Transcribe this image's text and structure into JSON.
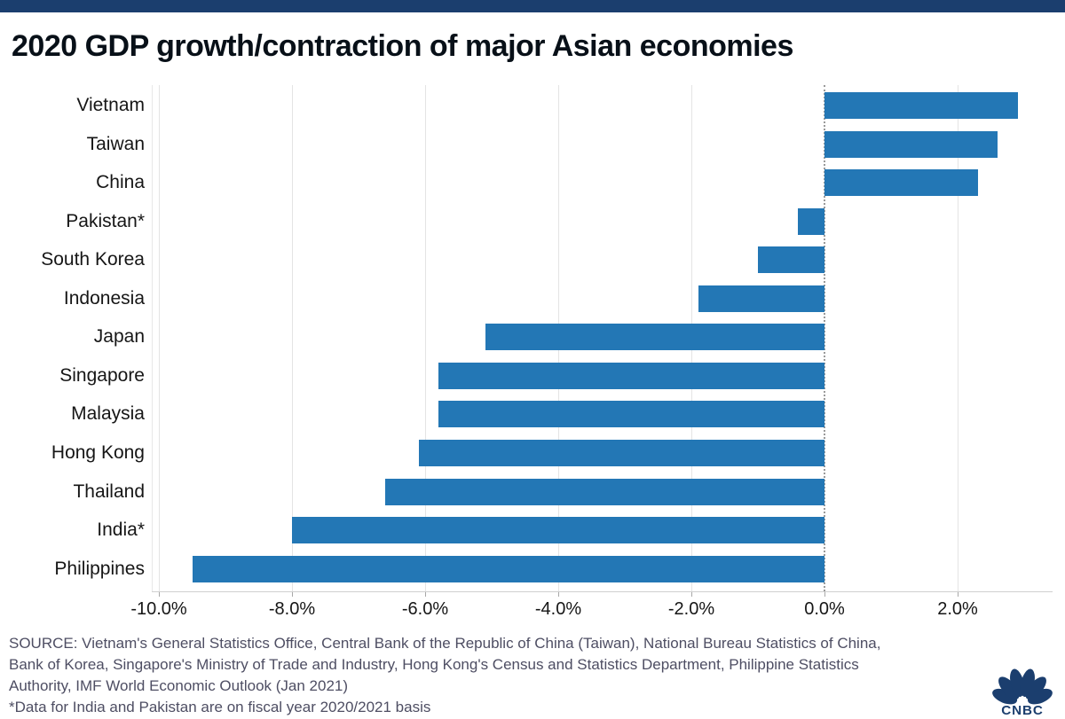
{
  "page": {
    "background": "#ffffff",
    "top_band_color": "#1b3e6e"
  },
  "header": {
    "title": "2020 GDP growth/contraction of major Asian economies",
    "title_color": "#081018"
  },
  "chart_data": {
    "type": "bar",
    "orientation": "horizontal",
    "title": "2020 GDP growth/contraction of major Asian economies",
    "xlabel": "",
    "ylabel": "",
    "unit": "%",
    "bar_color": "#2377b5",
    "categories": [
      "Vietnam",
      "Taiwan",
      "China",
      "Pakistan*",
      "South Korea",
      "Indonesia",
      "Japan",
      "Singapore",
      "Malaysia",
      "Hong Kong",
      "Thailand",
      "India*",
      "Philippines"
    ],
    "values": [
      2.9,
      2.6,
      2.3,
      -0.4,
      -1.0,
      -1.9,
      -5.1,
      -5.8,
      -5.8,
      -6.1,
      -6.6,
      -8.0,
      -9.5
    ],
    "x_axis": {
      "range": [
        -10.1,
        3.4
      ],
      "tick_values": [
        -10,
        -8,
        -6,
        -4,
        -2,
        0,
        2
      ],
      "tick_labels": [
        "-10.0%",
        "-8.0%",
        "-6.0%",
        "-4.0%",
        "-2.0%",
        "0.0%",
        "2.0%"
      ],
      "grid": true,
      "zero_line_style": "dotted"
    },
    "legend": null
  },
  "footer": {
    "source_lines": [
      "SOURCE: Vietnam's General Statistics Office, Central Bank of the Republic of China (Taiwan), National Bureau Statistics of China,",
      "Bank of Korea, Singapore's Ministry of Trade and Industry, Hong Kong's Census and Statistics Department, Philippine Statistics",
      "Authority, IMF World Economic Outlook (Jan 2021)"
    ],
    "footnote": "*Data for India and Pakistan are on fiscal year 2020/2021 basis",
    "logo_text": "CNBC",
    "logo_color": "#1b3e6e"
  }
}
